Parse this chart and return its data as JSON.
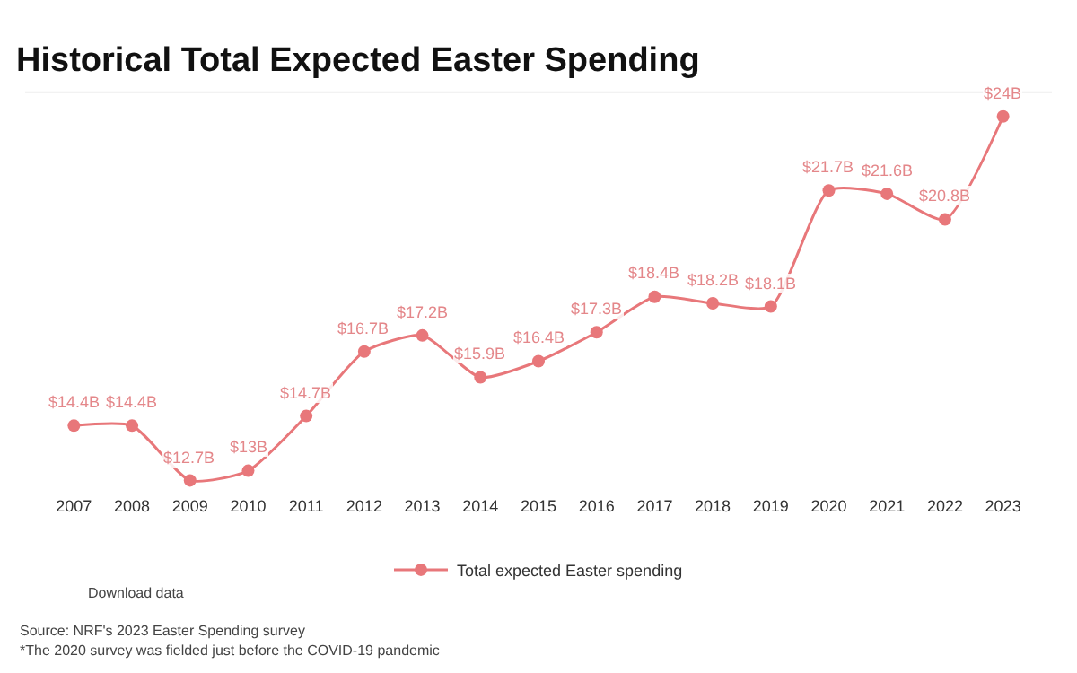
{
  "chart_data": {
    "type": "line",
    "title": "Historical Total Expected Easter Spending",
    "categories": [
      "2007",
      "2008",
      "2009",
      "2010",
      "2011",
      "2012",
      "2013",
      "2014",
      "2015",
      "2016",
      "2017",
      "2018",
      "2019",
      "2020",
      "2021",
      "2022",
      "2023"
    ],
    "series": [
      {
        "name": "Total expected Easter spending",
        "color": "#e8777a",
        "values": [
          14.4,
          14.4,
          12.7,
          13,
          14.7,
          16.7,
          17.2,
          15.9,
          16.4,
          17.3,
          18.4,
          18.2,
          18.1,
          21.7,
          21.6,
          20.8,
          24
        ],
        "value_labels": [
          "$14.4B",
          "$14.4B",
          "$12.7B",
          "$13B",
          "$14.7B",
          "$16.7B",
          "$17.2B",
          "$15.9B",
          "$16.4B",
          "$17.3B",
          "$18.4B",
          "$18.2B",
          "$18.1B",
          "$21.7B",
          "$21.6B",
          "$20.8B",
          "$24B"
        ]
      }
    ],
    "marker": "circle",
    "line_style": "solid",
    "legend": "bottom",
    "tick_labels": "x",
    "annotations": [
      "Download data",
      "Source: NRF's 2023 Easter Spending survey",
      "*The 2020 survey was fielded just before the COVID-19 pandemic"
    ]
  }
}
